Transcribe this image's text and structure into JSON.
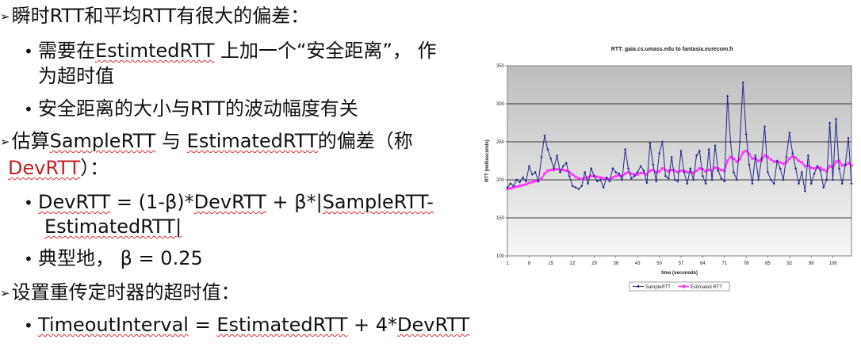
{
  "slide": {
    "b1": "瞬时RTT和平均RTT有很大的偏差：",
    "b1a_l1_p1": "需要在",
    "b1a_l1_p2": "EstimtedRTT",
    "b1a_l1_p3": " 上加一个“安全距离”， 作",
    "b1a_l2": "为超时值",
    "b1b": "安全距离的大小与RTT的波动幅度有关",
    "b2_l1_p1": "估算",
    "b2_l1_p2": "SampleRTT",
    "b2_l1_p3": " 与 ",
    "b2_l1_p4": "EstimatedRTT",
    "b2_l1_p5": "的偏差（称",
    "b2_l2_p1": "DevRTT",
    "b2_l2_p2": "）：",
    "b2a_l1_p1": "DevRTT",
    "b2a_l1_p2": " = (1-β)*",
    "b2a_l1_p3": "DevRTT",
    "b2a_l1_p4": " + β*|",
    "b2a_l1_p5": "SampleRTT-",
    "b2a_l2": "EstimatedRTT|",
    "b2b": "典型地， β = 0.25",
    "b3": "设置重传定时器的超时值：",
    "b3a_p1": "TimeoutInterval",
    "b3a_p2": " = ",
    "b3a_p3": "EstimatedRTT",
    "b3a_p4": " + 4*",
    "b3a_p5": "DevRTT"
  },
  "colors": {
    "sample": "#1f2a8a",
    "estimated": "#ff33ff",
    "text": "#111111",
    "red": "#c0202a"
  },
  "chart_data": {
    "type": "line",
    "title": "RTT: gaia.cs.umass.edu to fantasia.eurecom.fr",
    "xlabel": "time (seconnds)",
    "ylabel": "RTT (milliseconds)",
    "ylim": [
      100,
      350
    ],
    "yticks": [
      100,
      150,
      200,
      250,
      300,
      350
    ],
    "xticks": [
      1,
      8,
      15,
      22,
      29,
      36,
      43,
      50,
      57,
      64,
      71,
      78,
      85,
      92,
      99,
      106
    ],
    "xlim": [
      1,
      112
    ],
    "grid": true,
    "legend_position": "bottom",
    "series": [
      {
        "name": "SampleRTT",
        "x": [
          1,
          2,
          3,
          4,
          5,
          6,
          7,
          8,
          9,
          10,
          11,
          12,
          13,
          14,
          15,
          16,
          17,
          18,
          19,
          20,
          21,
          22,
          23,
          24,
          25,
          26,
          27,
          28,
          29,
          30,
          31,
          32,
          33,
          34,
          35,
          36,
          37,
          38,
          39,
          40,
          41,
          42,
          43,
          44,
          45,
          46,
          47,
          48,
          49,
          50,
          51,
          52,
          53,
          54,
          55,
          56,
          57,
          58,
          59,
          60,
          61,
          62,
          63,
          64,
          65,
          66,
          67,
          68,
          69,
          70,
          71,
          72,
          73,
          74,
          75,
          76,
          77,
          78,
          79,
          80,
          81,
          82,
          83,
          84,
          85,
          86,
          87,
          88,
          89,
          90,
          91,
          92,
          93,
          94,
          95,
          96,
          97,
          98,
          99,
          100,
          101,
          102,
          103,
          104,
          105,
          106,
          107,
          108,
          109,
          110,
          111,
          112
        ],
        "values": [
          190,
          195,
          192,
          200,
          197,
          203,
          198,
          218,
          207,
          210,
          198,
          230,
          258,
          240,
          228,
          215,
          232,
          210,
          218,
          222,
          205,
          192,
          190,
          188,
          192,
          210,
          195,
          215,
          205,
          198,
          200,
          190,
          203,
          198,
          215,
          210,
          208,
          200,
          240,
          215,
          202,
          205,
          210,
          218,
          212,
          196,
          248,
          220,
          198,
          235,
          250,
          205,
          202,
          230,
          200,
          198,
          238,
          210,
          195,
          215,
          200,
          232,
          238,
          205,
          195,
          240,
          200,
          245,
          212,
          202,
          198,
          310,
          250,
          210,
          200,
          250,
          328,
          260,
          220,
          195,
          232,
          200,
          228,
          270,
          210,
          200,
          195,
          225,
          215,
          200,
          230,
          262,
          235,
          215,
          195,
          210,
          185,
          232,
          195,
          208,
          218,
          212,
          190,
          200,
          275,
          200,
          280,
          215,
          195,
          220,
          255,
          195
        ]
      },
      {
        "name": "Estimated RTT",
        "x": [
          1,
          2,
          3,
          4,
          5,
          6,
          7,
          8,
          9,
          10,
          11,
          12,
          13,
          14,
          15,
          16,
          17,
          18,
          19,
          20,
          21,
          22,
          23,
          24,
          25,
          26,
          27,
          28,
          29,
          30,
          31,
          32,
          33,
          34,
          35,
          36,
          37,
          38,
          39,
          40,
          41,
          42,
          43,
          44,
          45,
          46,
          47,
          48,
          49,
          50,
          51,
          52,
          53,
          54,
          55,
          56,
          57,
          58,
          59,
          60,
          61,
          62,
          63,
          64,
          65,
          66,
          67,
          68,
          69,
          70,
          71,
          72,
          73,
          74,
          75,
          76,
          77,
          78,
          79,
          80,
          81,
          82,
          83,
          84,
          85,
          86,
          87,
          88,
          89,
          90,
          91,
          92,
          93,
          94,
          95,
          96,
          97,
          98,
          99,
          100,
          101,
          102,
          103,
          104,
          105,
          106,
          107,
          108,
          109,
          110,
          111,
          112
        ],
        "values": [
          188,
          189,
          190,
          191,
          192,
          193,
          194,
          196,
          197,
          198,
          199,
          202,
          208,
          212,
          213,
          213,
          214,
          213,
          213,
          212,
          210,
          207,
          204,
          202,
          201,
          203,
          203,
          205,
          205,
          204,
          203,
          202,
          201,
          201,
          203,
          205,
          206,
          205,
          208,
          210,
          208,
          207,
          207,
          209,
          209,
          207,
          212,
          213,
          210,
          211,
          215,
          213,
          211,
          213,
          212,
          210,
          212,
          212,
          210,
          210,
          209,
          212,
          215,
          214,
          211,
          213,
          212,
          216,
          215,
          213,
          212,
          225,
          230,
          228,
          224,
          227,
          236,
          238,
          234,
          228,
          228,
          225,
          226,
          232,
          230,
          227,
          224,
          224,
          223,
          221,
          223,
          228,
          231,
          229,
          225,
          223,
          218,
          219,
          216,
          215,
          216,
          216,
          213,
          211,
          218,
          216,
          224,
          225,
          219,
          219,
          222,
          219
        ]
      }
    ]
  }
}
